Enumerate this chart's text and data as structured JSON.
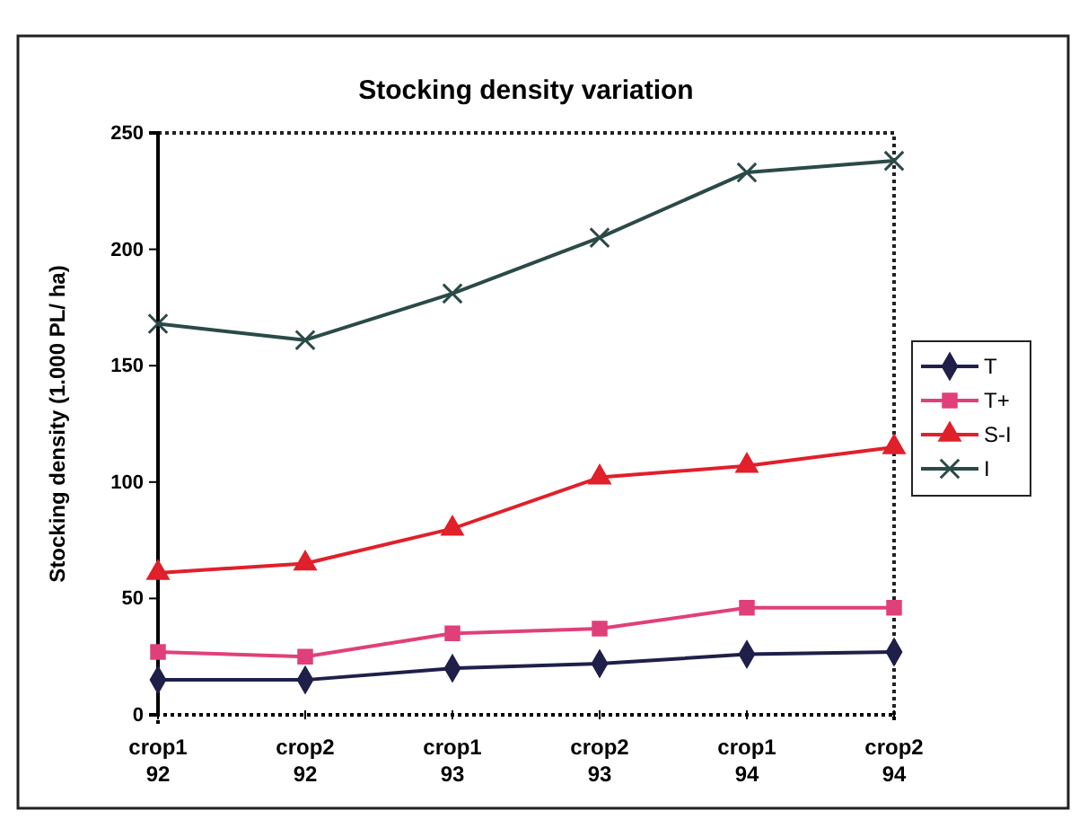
{
  "chart_data": {
    "type": "line",
    "title": "Stocking density variation",
    "ylabel": "Stocking density (1.000 PL/ ha)",
    "categories": [
      "crop1 92",
      "crop2 92",
      "crop1 93",
      "crop2 93",
      "crop1 94",
      "crop2 94"
    ],
    "ylim": [
      0,
      250
    ],
    "yticks": [
      0,
      50,
      100,
      150,
      200,
      250
    ],
    "grid": false,
    "legend": "right",
    "line_style": "solid",
    "series": [
      {
        "name": "T",
        "color": "#1f1f4a",
        "marker": "diamond",
        "values": [
          15,
          15,
          20,
          22,
          26,
          27
        ]
      },
      {
        "name": "T+",
        "color": "#e0407a",
        "marker": "square",
        "values": [
          27,
          25,
          35,
          37,
          46,
          46
        ]
      },
      {
        "name": "S-I",
        "color": "#e0202a",
        "marker": "triangle",
        "values": [
          61,
          65,
          80,
          102,
          107,
          115
        ]
      },
      {
        "name": "I",
        "color": "#2a4a48",
        "marker": "cross",
        "values": [
          168,
          161,
          181,
          205,
          233,
          238
        ]
      }
    ]
  }
}
